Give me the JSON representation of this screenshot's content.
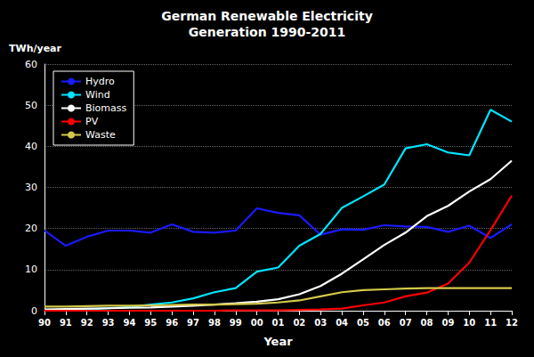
{
  "chart_data": {
    "type": "line",
    "title": "German Renewable Electricity\nGeneration 1990-2011",
    "xlabel": "Year",
    "ylabel": "TWh/year",
    "categories": [
      "90",
      "91",
      "92",
      "93",
      "94",
      "95",
      "96",
      "97",
      "98",
      "99",
      "00",
      "01",
      "02",
      "03",
      "04",
      "05",
      "06",
      "07",
      "08",
      "09",
      "10",
      "11",
      "12"
    ],
    "series": [
      {
        "name": "Hydro",
        "color": "#1a1aff",
        "values": [
          19.5,
          15.8,
          18.0,
          19.5,
          19.5,
          19.0,
          21.0,
          19.2,
          19.0,
          19.5,
          24.9,
          23.8,
          23.2,
          18.5,
          19.8,
          19.7,
          20.8,
          20.5,
          20.4,
          19.2,
          20.7,
          17.7,
          21.0
        ]
      },
      {
        "name": "Wind",
        "color": "#00e5ff",
        "values": [
          0.1,
          0.2,
          0.3,
          0.6,
          0.9,
          1.5,
          2.0,
          3.0,
          4.5,
          5.5,
          9.5,
          10.5,
          15.8,
          18.7,
          25.0,
          27.8,
          30.7,
          39.5,
          40.5,
          38.5,
          37.8,
          48.9,
          46.0
        ]
      },
      {
        "name": "Biomass",
        "color": "#ffffff",
        "values": [
          0.3,
          0.4,
          0.5,
          0.6,
          0.7,
          0.8,
          1.0,
          1.2,
          1.5,
          1.8,
          2.2,
          2.8,
          4.0,
          6.0,
          9.0,
          12.5,
          16.0,
          19.0,
          23.0,
          25.5,
          29.0,
          32.0,
          36.5
        ]
      },
      {
        "name": "PV",
        "color": "#ff0000",
        "values": [
          0.0,
          0.0,
          0.0,
          0.0,
          0.0,
          0.0,
          0.0,
          0.0,
          0.0,
          0.1,
          0.1,
          0.1,
          0.2,
          0.3,
          0.5,
          1.3,
          2.0,
          3.5,
          4.4,
          6.6,
          11.7,
          19.6,
          28.0
        ]
      },
      {
        "name": "Waste",
        "color": "#d4c84a",
        "values": [
          1.0,
          1.0,
          1.1,
          1.2,
          1.2,
          1.3,
          1.4,
          1.5,
          1.5,
          1.6,
          1.7,
          2.0,
          2.5,
          3.5,
          4.5,
          5.0,
          5.2,
          5.4,
          5.5,
          5.5,
          5.5,
          5.5,
          5.5
        ]
      }
    ],
    "ylim": [
      0,
      60
    ],
    "yticks": [
      0,
      10,
      20,
      30,
      40,
      50,
      60
    ],
    "grid": true,
    "legend": "upper left"
  }
}
